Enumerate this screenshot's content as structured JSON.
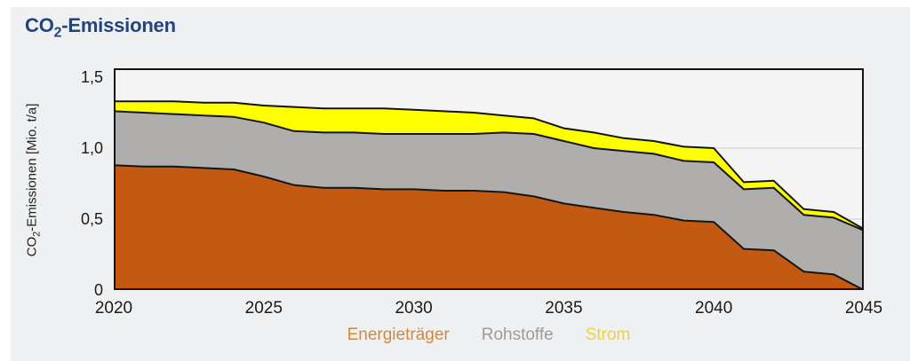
{
  "header": {
    "title_prefix": "CO",
    "title_sub": "2",
    "title_suffix": "-Emissionen"
  },
  "axis": {
    "ylabel_prefix": "CO",
    "ylabel_sub": "2",
    "ylabel_suffix": "-Emissionen [Mio. t/a]"
  },
  "colors": {
    "title_text": "#26427e",
    "panel_bg": "#eef0f2",
    "plot_bg": "#f4f4f5",
    "grid": "#d9d9d9",
    "outline": "#151515",
    "tick_text": "#1a1a1a"
  },
  "chart_data": {
    "type": "area",
    "stacked": true,
    "title": "CO2-Emissionen",
    "ylabel": "CO2-Emissionen [Mio. t/a]",
    "x": [
      2020,
      2021,
      2022,
      2023,
      2024,
      2025,
      2026,
      2027,
      2028,
      2029,
      2030,
      2031,
      2032,
      2033,
      2034,
      2035,
      2036,
      2037,
      2038,
      2039,
      2040,
      2041,
      2042,
      2043,
      2044,
      2045
    ],
    "series": [
      {
        "name": "Energieträger",
        "slug": "energietraeger",
        "fill_color": "#c45a12",
        "legend_color": "#ce8a3e",
        "values": [
          0.88,
          0.87,
          0.87,
          0.86,
          0.85,
          0.8,
          0.74,
          0.72,
          0.72,
          0.71,
          0.71,
          0.7,
          0.7,
          0.69,
          0.66,
          0.61,
          0.58,
          0.55,
          0.53,
          0.49,
          0.48,
          0.29,
          0.28,
          0.13,
          0.11,
          0.0
        ]
      },
      {
        "name": "Rohstoffe",
        "slug": "rohstoffe",
        "fill_color": "#afaead",
        "legend_color": "#9c9c9c",
        "values": [
          0.38,
          0.38,
          0.37,
          0.37,
          0.37,
          0.38,
          0.38,
          0.39,
          0.39,
          0.39,
          0.39,
          0.4,
          0.4,
          0.42,
          0.44,
          0.44,
          0.42,
          0.43,
          0.43,
          0.42,
          0.42,
          0.42,
          0.44,
          0.4,
          0.4,
          0.42
        ]
      },
      {
        "name": "Strom",
        "slug": "strom",
        "fill_color": "#fdff00",
        "legend_color": "#eed33c",
        "values": [
          0.07,
          0.08,
          0.09,
          0.09,
          0.1,
          0.12,
          0.17,
          0.17,
          0.17,
          0.18,
          0.17,
          0.16,
          0.15,
          0.12,
          0.11,
          0.09,
          0.11,
          0.09,
          0.09,
          0.1,
          0.1,
          0.05,
          0.05,
          0.04,
          0.04,
          0.01
        ]
      }
    ],
    "xlim": [
      2020,
      2045
    ],
    "ylim": [
      0,
      1.5625
    ],
    "y_ticks": [
      {
        "value": 0,
        "label": "0"
      },
      {
        "value": 0.5,
        "label": "0,5"
      },
      {
        "value": 1.0,
        "label": "1,0"
      },
      {
        "value": 1.5,
        "label": "1,5"
      }
    ],
    "x_ticks": [
      2020,
      2025,
      2030,
      2035,
      2040,
      2045
    ],
    "gridlines": [
      0.5,
      1.0
    ],
    "grid_on": true,
    "legend_position": "bottom"
  }
}
